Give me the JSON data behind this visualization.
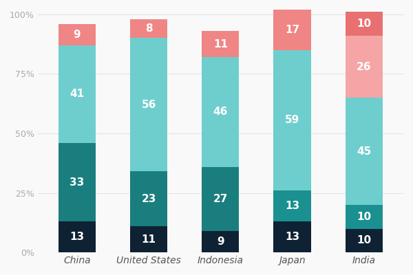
{
  "categories": [
    "China",
    "United States",
    "Indonesia",
    "Japan",
    "India"
  ],
  "segments": [
    {
      "name": "China",
      "values": [
        13,
        33,
        41,
        9
      ],
      "colors": [
        "#0e2233",
        "#1a7e7e",
        "#6ecece",
        "#f08585"
      ]
    },
    {
      "name": "United States",
      "values": [
        11,
        23,
        56,
        8
      ],
      "colors": [
        "#0e2233",
        "#1a7e7e",
        "#6ecece",
        "#f08585"
      ]
    },
    {
      "name": "Indonesia",
      "values": [
        9,
        27,
        46,
        11
      ],
      "colors": [
        "#0e2233",
        "#1a7e7e",
        "#6ecece",
        "#f08585"
      ]
    },
    {
      "name": "Japan",
      "values": [
        13,
        13,
        59,
        17
      ],
      "colors": [
        "#0e2233",
        "#1a9090",
        "#6ecece",
        "#f08585"
      ]
    },
    {
      "name": "India",
      "values": [
        10,
        10,
        45,
        26,
        10
      ],
      "colors": [
        "#0e2233",
        "#1a9090",
        "#6ecece",
        "#f5a5a5",
        "#e87070"
      ]
    }
  ],
  "bar_width": 0.52,
  "ylim": [
    0,
    102
  ],
  "yticks": [
    0,
    25,
    50,
    75,
    100
  ],
  "yticklabels": [
    "0%",
    "25%",
    "50%",
    "75%",
    "100%"
  ],
  "text_color": "#ffffff",
  "text_fontsize": 11,
  "label_fontsize": 10,
  "background_color": "#f9f9f9",
  "tick_color": "#aaaaaa"
}
